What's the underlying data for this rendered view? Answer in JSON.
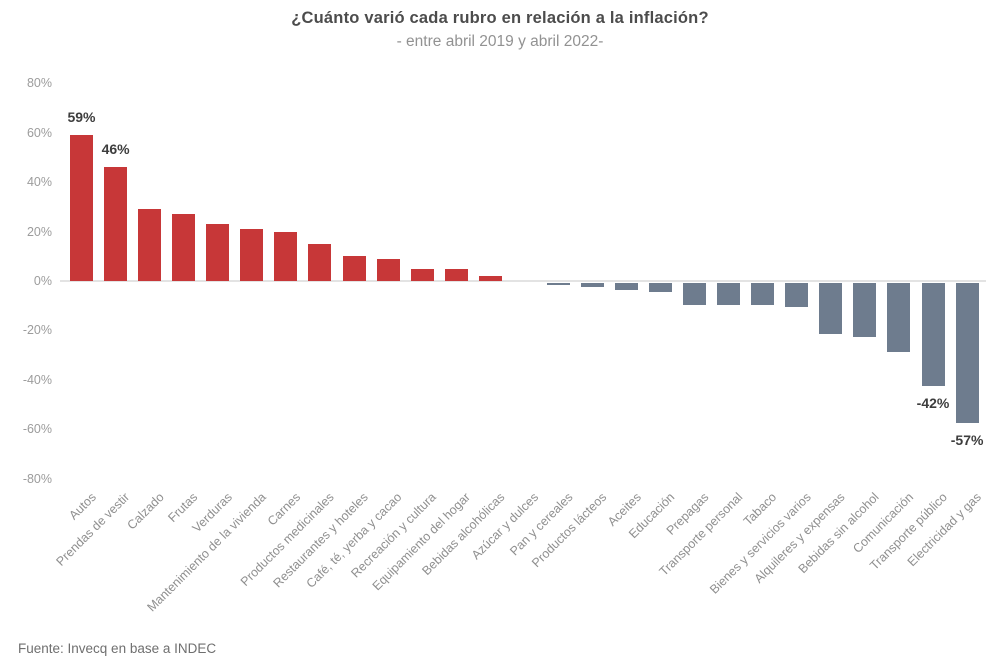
{
  "header": {
    "title": "¿Cuánto varió cada rubro en relación a la inflación?",
    "subtitle": "- entre abril 2019 y abril 2022-"
  },
  "footer": {
    "source": "Fuente: Invecq en base a INDEC"
  },
  "chart_data": {
    "type": "bar",
    "title": "¿Cuánto varió cada rubro en relación a la inflación?",
    "subtitle": "- entre abril 2019 y abril 2022-",
    "categories": [
      "Autos",
      "Prendas de vestir",
      "Calzado",
      "Frutas",
      "Verduras",
      "Mantenimiento de la vivienda",
      "Carnes",
      "Productos medicinales",
      "Restaurantes y hoteles",
      "Café, té, yerba y cacao",
      "Recreación y cultura",
      "Equipamiento del hogar",
      "Bebidas alcohólicas",
      "Azúcar y dulces",
      "Pan y cereales",
      "Productos lácteos",
      "Aceites",
      "Educación",
      "Prepagas",
      "Transporte personal",
      "Tabaco",
      "Bienes y servicios varios",
      "Alquileres y expensas",
      "Bebidas sin alcohol",
      "Comunicación",
      "Transporte público",
      "Electricidad y gas"
    ],
    "values": [
      59,
      46,
      29,
      27,
      23,
      21,
      20,
      15,
      10,
      9,
      5,
      5,
      2,
      0,
      -1,
      -2,
      -3,
      -4,
      -9,
      -9,
      -9,
      -10,
      -21,
      -22,
      -28,
      -42,
      -57
    ],
    "data_labels": [
      "59%",
      "46%",
      null,
      null,
      null,
      null,
      null,
      null,
      null,
      null,
      null,
      null,
      null,
      null,
      null,
      null,
      null,
      null,
      null,
      null,
      null,
      null,
      null,
      null,
      null,
      "-42%",
      "-57%"
    ],
    "unit": "%",
    "yticks": [
      80,
      60,
      40,
      20,
      0,
      -20,
      -40,
      -60,
      -80
    ],
    "ylim": [
      -80,
      80
    ],
    "grid": false,
    "legend": false,
    "positive_color": "#c73738",
    "negative_color": "#6e7c8e",
    "axis_line_color": "#e3e3e3",
    "xlabel": "",
    "ylabel": ""
  }
}
